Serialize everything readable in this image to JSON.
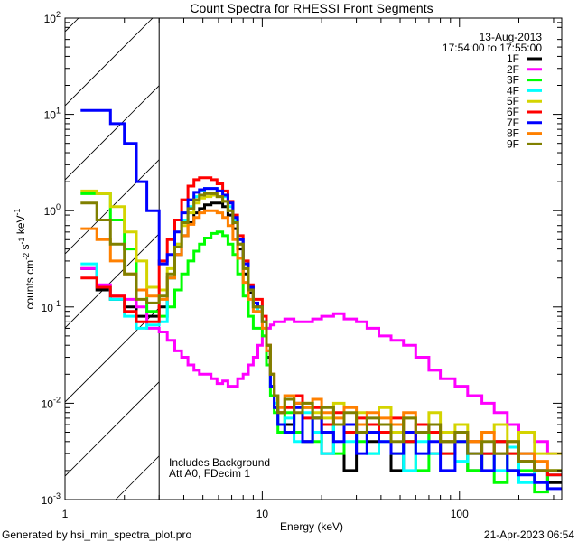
{
  "chart_data": {
    "type": "line",
    "title": "Count Spectra for RHESSI Front Segments",
    "xlabel": "Energy (keV)",
    "ylabel": {
      "parts": [
        [
          "counts cm",
          "-2"
        ],
        [
          " s",
          "-1"
        ],
        [
          " keV",
          "-1"
        ]
      ]
    },
    "xscale": "log",
    "yscale": "log",
    "xlim": [
      1,
      330
    ],
    "ylim": [
      0.001,
      100
    ],
    "x_ticks": [
      "1",
      "10",
      "100"
    ],
    "y_ticks": [
      {
        "base": "10",
        "exp": "-3"
      },
      {
        "base": "10",
        "exp": "-2"
      },
      {
        "base": "10",
        "exp": "-1"
      },
      {
        "base": "10",
        "exp": "0"
      },
      {
        "base": "10",
        "exp": "1"
      },
      {
        "base": "10",
        "exp": "2"
      }
    ],
    "excluded_region_keV": [
      1,
      3
    ],
    "legend_position": "top-right",
    "legend_header": [
      "13-Aug-2013",
      "17:54:00 to 17:55:00"
    ],
    "annotations": [
      "Includes Background",
      "Att A0, FDecim 1"
    ],
    "energy_edges_keV": [
      1.2,
      1.45,
      1.7,
      2.0,
      2.3,
      2.6,
      3.0,
      3.3,
      3.6,
      3.9,
      4.2,
      4.5,
      4.8,
      5.1,
      5.5,
      5.9,
      6.3,
      6.7,
      7.1,
      7.5,
      8.0,
      8.5,
      9.0,
      9.5,
      10,
      10.5,
      11,
      11.5,
      12,
      13,
      14.5,
      16,
      18,
      20,
      23,
      26,
      30,
      34,
      39,
      45,
      52,
      60,
      70,
      80,
      95,
      110,
      130,
      150,
      175,
      200,
      240,
      280,
      330
    ],
    "series": [
      {
        "name": "1F",
        "color": "#000000",
        "values": [
          0.25,
          0.15,
          0.12,
          0.1,
          0.08,
          0.08,
          0.1,
          0.2,
          0.35,
          0.55,
          0.75,
          0.95,
          1.05,
          1.15,
          1.2,
          1.2,
          1.1,
          0.9,
          0.65,
          0.4,
          0.22,
          0.14,
          0.1,
          0.1,
          0.07,
          0.03,
          0.015,
          0.009,
          0.006,
          0.006,
          0.01,
          0.004,
          0.007,
          0.003,
          0.006,
          0.002,
          0.005,
          0.004,
          0.006,
          0.002,
          0.004,
          0.005,
          0.003,
          0.004,
          0.005,
          0.002,
          0.003,
          0.004,
          0.002,
          0.003,
          0.002,
          0.0015
        ]
      },
      {
        "name": "2F",
        "color": "#ff00ff",
        "values": [
          0.25,
          0.17,
          0.13,
          0.12,
          0.1,
          0.06,
          0.055,
          0.045,
          0.035,
          0.03,
          0.025,
          0.022,
          0.02,
          0.02,
          0.018,
          0.016,
          0.017,
          0.015,
          0.015,
          0.018,
          0.02,
          0.025,
          0.03,
          0.04,
          0.05,
          0.06,
          0.065,
          0.07,
          0.07,
          0.075,
          0.07,
          0.07,
          0.075,
          0.08,
          0.085,
          0.075,
          0.07,
          0.06,
          0.05,
          0.045,
          0.04,
          0.03,
          0.022,
          0.018,
          0.015,
          0.012,
          0.01,
          0.008,
          0.006,
          0.005,
          0.004,
          0.003
        ]
      },
      {
        "name": "3F",
        "color": "#00ff00",
        "values": [
          1.5,
          1.5,
          0.8,
          0.4,
          0.15,
          0.09,
          0.08,
          0.1,
          0.15,
          0.22,
          0.3,
          0.38,
          0.45,
          0.52,
          0.58,
          0.6,
          0.55,
          0.45,
          0.35,
          0.22,
          0.13,
          0.08,
          0.06,
          0.06,
          0.05,
          0.025,
          0.012,
          0.008,
          0.005,
          0.008,
          0.005,
          0.009,
          0.004,
          0.006,
          0.003,
          0.005,
          0.004,
          0.003,
          0.006,
          0.003,
          0.004,
          0.002,
          0.005,
          0.003,
          0.004,
          0.002,
          0.003,
          0.0015,
          0.003,
          0.002,
          0.0012,
          0.002
        ]
      },
      {
        "name": "4F",
        "color": "#00ffff",
        "values": [
          0.28,
          0.16,
          0.12,
          0.08,
          0.06,
          0.065,
          0.07,
          0.2,
          0.45,
          0.8,
          1.1,
          1.4,
          1.6,
          1.7,
          1.7,
          1.6,
          1.4,
          1.1,
          0.8,
          0.5,
          0.25,
          0.15,
          0.1,
          0.09,
          0.07,
          0.035,
          0.015,
          0.01,
          0.006,
          0.007,
          0.004,
          0.008,
          0.005,
          0.003,
          0.006,
          0.004,
          0.005,
          0.003,
          0.004,
          0.005,
          0.002,
          0.004,
          0.003,
          0.005,
          0.0025,
          0.004,
          0.003,
          0.002,
          0.0035,
          0.0015,
          0.002,
          0.0018
        ]
      },
      {
        "name": "5F",
        "color": "#d4d400",
        "values": [
          1.6,
          1.5,
          1.1,
          0.6,
          0.3,
          0.16,
          0.15,
          0.25,
          0.45,
          0.7,
          0.95,
          1.2,
          1.35,
          1.4,
          1.45,
          1.4,
          1.25,
          1.0,
          0.75,
          0.45,
          0.25,
          0.15,
          0.1,
          0.1,
          0.07,
          0.04,
          0.02,
          0.012,
          0.008,
          0.012,
          0.009,
          0.01,
          0.008,
          0.007,
          0.01,
          0.006,
          0.008,
          0.006,
          0.009,
          0.005,
          0.007,
          0.006,
          0.008,
          0.005,
          0.006,
          0.004,
          0.005,
          0.006,
          0.004,
          0.005,
          0.003,
          0.003
        ]
      },
      {
        "name": "6F",
        "color": "#ff0000",
        "values": [
          0.2,
          0.16,
          0.13,
          0.09,
          0.07,
          0.07,
          0.3,
          0.5,
          0.8,
          1.3,
          1.8,
          2.1,
          2.2,
          2.2,
          2.1,
          1.9,
          1.6,
          1.25,
          0.9,
          0.55,
          0.3,
          0.17,
          0.12,
          0.12,
          0.08,
          0.04,
          0.02,
          0.012,
          0.008,
          0.009,
          0.012,
          0.007,
          0.009,
          0.006,
          0.008,
          0.005,
          0.007,
          0.006,
          0.005,
          0.007,
          0.004,
          0.006,
          0.005,
          0.003,
          0.005,
          0.004,
          0.003,
          0.004,
          0.003,
          0.0025,
          0.002,
          0.0018
        ]
      },
      {
        "name": "7F",
        "color": "#0000ff",
        "values": [
          11,
          11,
          8,
          5,
          2,
          1,
          0.28,
          0.35,
          0.6,
          0.95,
          1.3,
          1.55,
          1.65,
          1.7,
          1.7,
          1.6,
          1.45,
          1.2,
          0.85,
          0.5,
          0.28,
          0.16,
          0.11,
          0.1,
          0.07,
          0.035,
          0.015,
          0.009,
          0.006,
          0.005,
          0.009,
          0.004,
          0.007,
          0.005,
          0.004,
          0.006,
          0.003,
          0.005,
          0.004,
          0.003,
          0.005,
          0.003,
          0.004,
          0.002,
          0.004,
          0.003,
          0.002,
          0.003,
          0.002,
          0.0018,
          0.0015,
          0.0013
        ]
      },
      {
        "name": "8F",
        "color": "#ff8000",
        "values": [
          0.65,
          0.5,
          0.3,
          0.22,
          0.15,
          0.13,
          0.12,
          0.2,
          0.35,
          0.55,
          0.72,
          0.85,
          0.95,
          1.0,
          1.0,
          0.95,
          0.85,
          0.7,
          0.5,
          0.32,
          0.18,
          0.12,
          0.09,
          0.09,
          0.06,
          0.035,
          0.02,
          0.012,
          0.009,
          0.012,
          0.01,
          0.009,
          0.011,
          0.008,
          0.007,
          0.009,
          0.006,
          0.008,
          0.007,
          0.006,
          0.008,
          0.005,
          0.006,
          0.004,
          0.005,
          0.004,
          0.005,
          0.003,
          0.004,
          0.003,
          0.0025,
          0.002
        ]
      },
      {
        "name": "9F",
        "color": "#808000",
        "values": [
          1.2,
          0.8,
          0.45,
          0.22,
          0.12,
          0.11,
          0.13,
          0.22,
          0.42,
          0.75,
          1.05,
          1.3,
          1.45,
          1.5,
          1.5,
          1.4,
          1.25,
          1.0,
          0.75,
          0.45,
          0.25,
          0.15,
          0.1,
          0.1,
          0.07,
          0.04,
          0.02,
          0.012,
          0.008,
          0.011,
          0.008,
          0.01,
          0.007,
          0.009,
          0.006,
          0.008,
          0.005,
          0.007,
          0.006,
          0.004,
          0.007,
          0.005,
          0.006,
          0.004,
          0.005,
          0.003,
          0.004,
          0.003,
          0.004,
          0.0025,
          0.002,
          0.002
        ]
      }
    ]
  },
  "footer": {
    "generated_by": "Generated by hsi_min_spectra_plot.pro",
    "date": "21-Apr-2023 06:54"
  }
}
